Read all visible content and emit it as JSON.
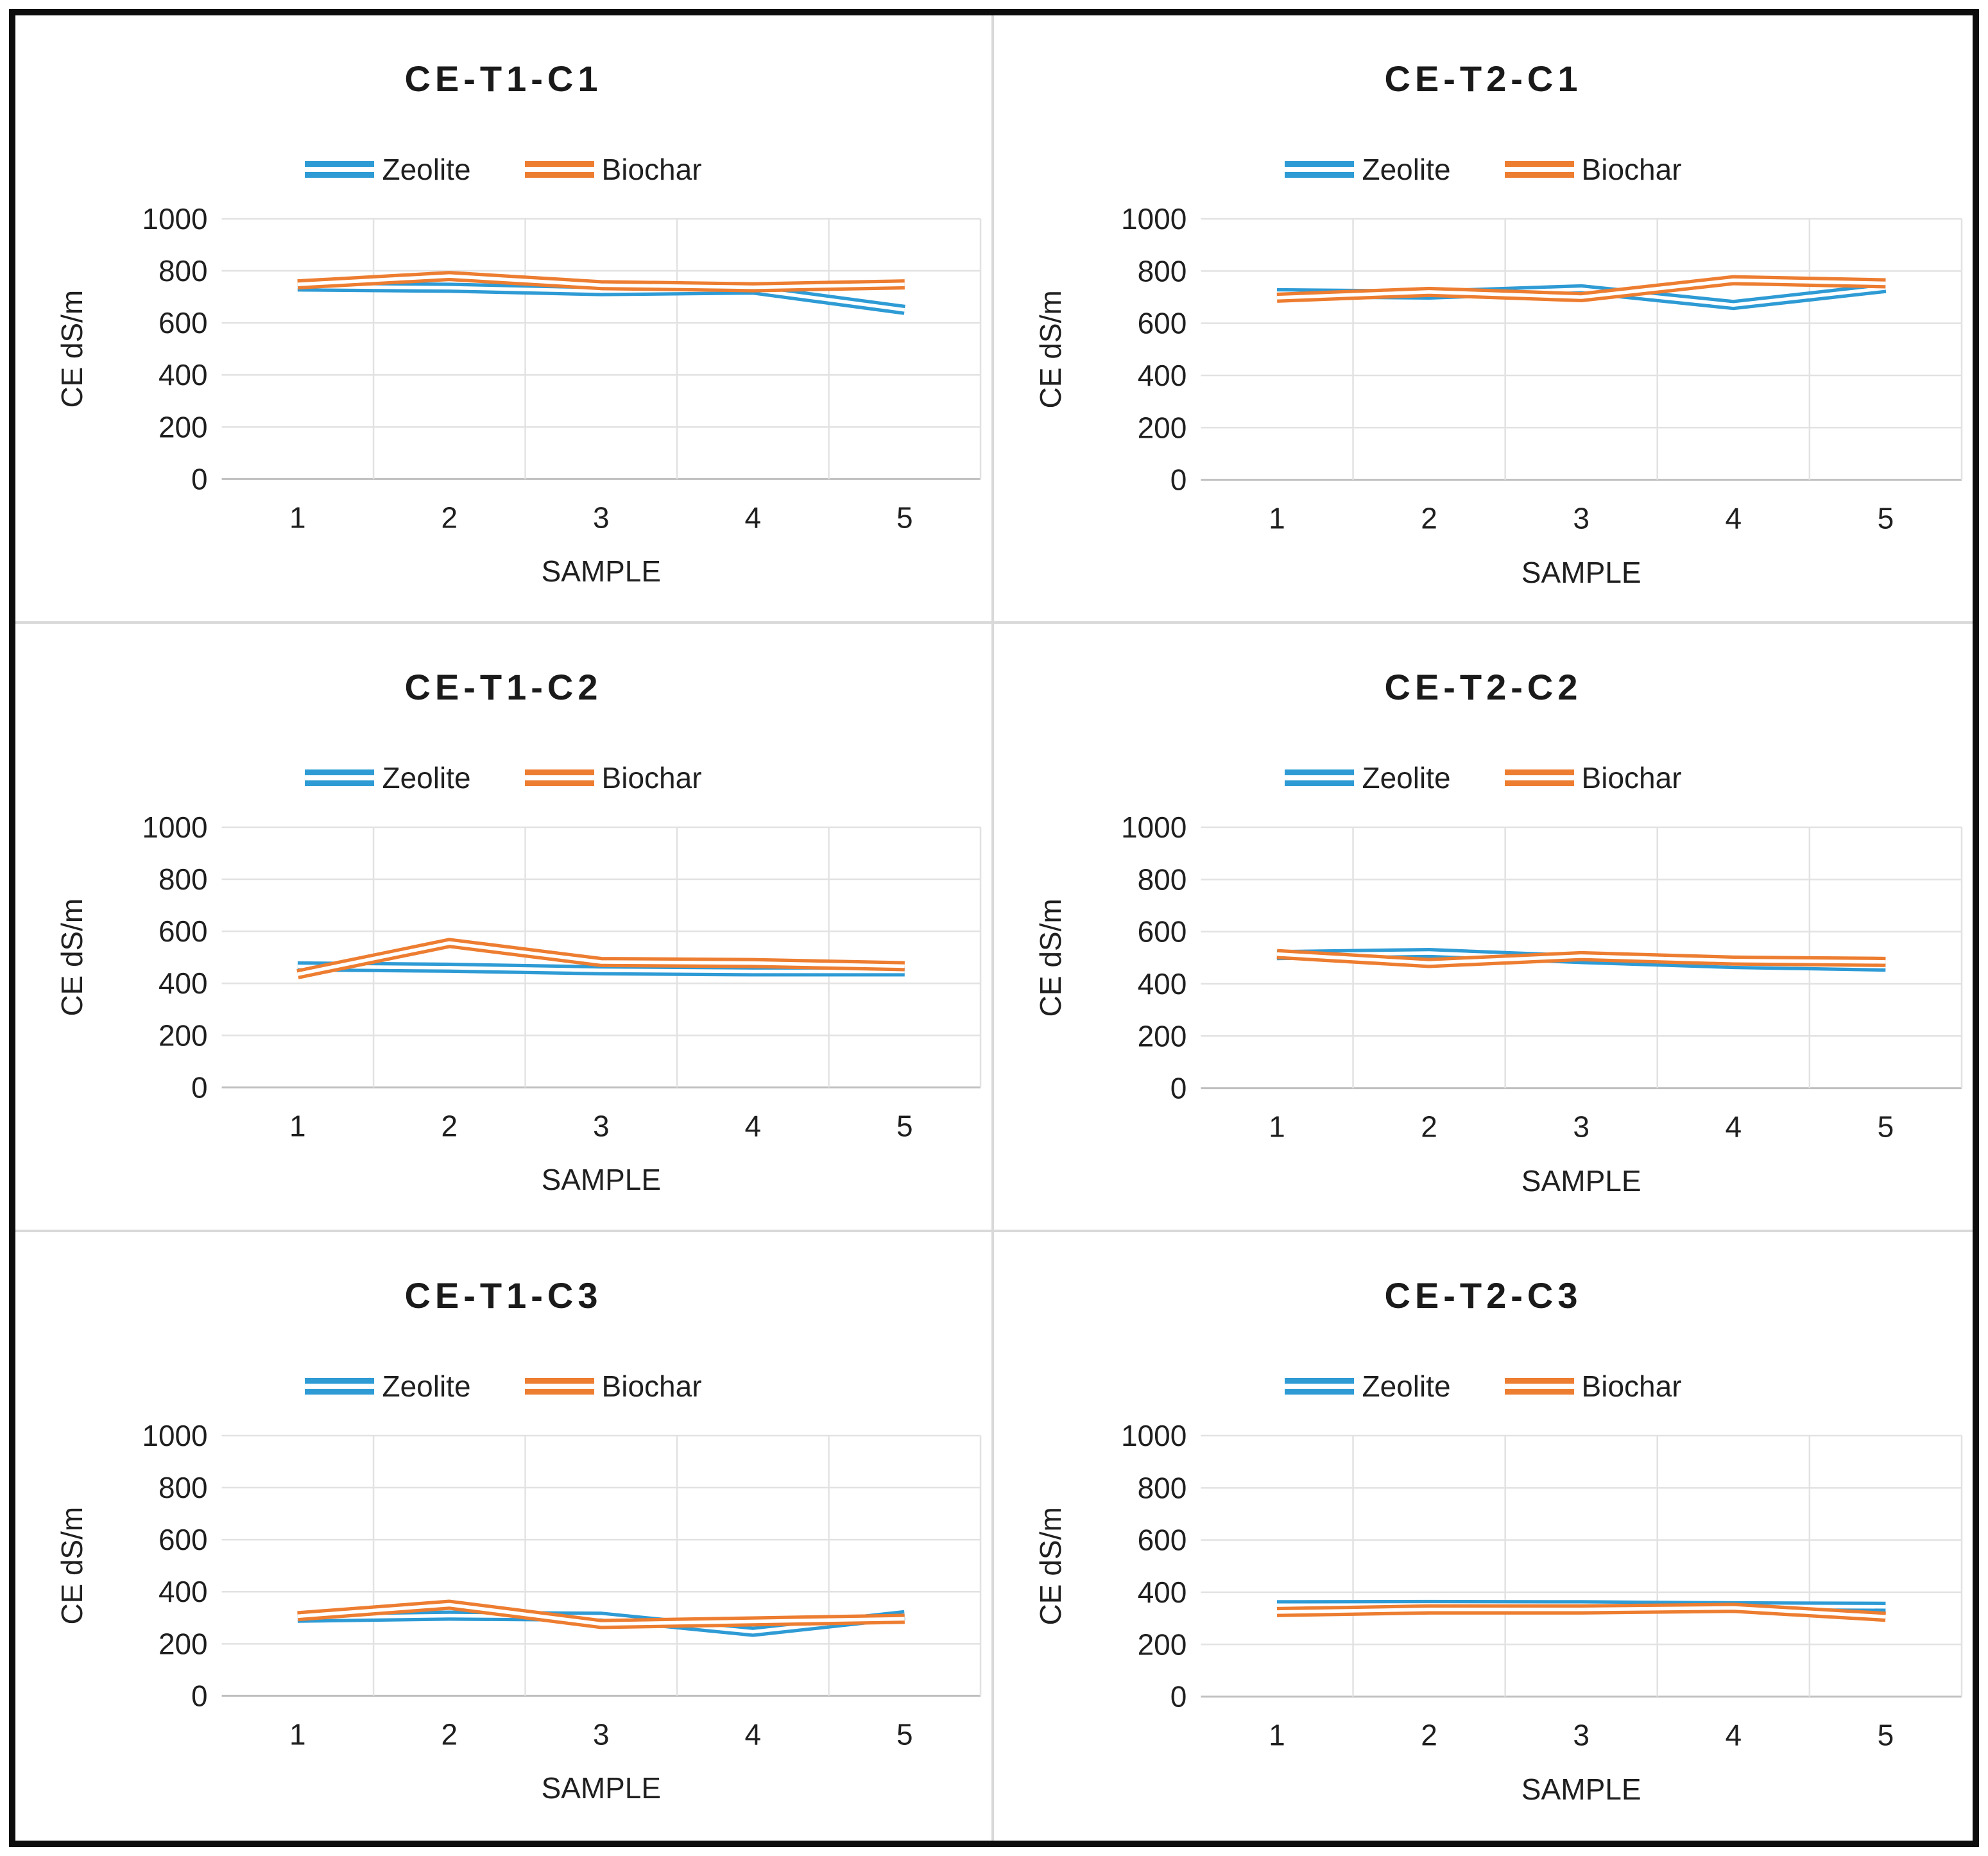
{
  "page": {
    "background": "#ffffff",
    "frame_color": "#0d0d0d",
    "divider_color": "#d9d9d9"
  },
  "colors": {
    "zeolite": "#2e9bd5",
    "biochar": "#ed7d31",
    "grid": "#e2e2e2",
    "axis_line": "#bfbfbf",
    "text": "#1f1f1f"
  },
  "legend": {
    "items": [
      {
        "label": "Zeolite",
        "color_key": "zeolite"
      },
      {
        "label": "Biochar",
        "color_key": "biochar"
      }
    ]
  },
  "axes": {
    "y_label": "CE dS/m",
    "x_label": "SAMPLE",
    "y_ticks": [
      0,
      200,
      400,
      600,
      800,
      1000
    ],
    "ylim": [
      0,
      1000
    ]
  },
  "chart_data": [
    {
      "type": "line",
      "title": "CE-T1-C1",
      "xlabel": "SAMPLE",
      "ylabel": "CE dS/m",
      "ylim": [
        0,
        1000
      ],
      "grid": true,
      "legend_position": "top",
      "categories": [
        1,
        2,
        3,
        4,
        5
      ],
      "series": [
        {
          "name": "Zeolite",
          "color_key": "zeolite",
          "values": [
            740,
            735,
            722,
            728,
            650
          ]
        },
        {
          "name": "Biochar",
          "color_key": "biochar",
          "values": [
            748,
            780,
            745,
            737,
            748
          ]
        }
      ]
    },
    {
      "type": "line",
      "title": "CE-T2-C1",
      "xlabel": "SAMPLE",
      "ylabel": "CE dS/m",
      "ylim": [
        0,
        1000
      ],
      "grid": true,
      "legend_position": "top",
      "categories": [
        1,
        2,
        3,
        4,
        5
      ],
      "series": [
        {
          "name": "Zeolite",
          "color_key": "zeolite",
          "values": [
            715,
            710,
            730,
            670,
            735
          ]
        },
        {
          "name": "Biochar",
          "color_key": "biochar",
          "values": [
            698,
            720,
            700,
            765,
            753
          ]
        }
      ]
    },
    {
      "type": "line",
      "title": "CE-T1-C2",
      "xlabel": "SAMPLE",
      "ylabel": "CE dS/m",
      "ylim": [
        0,
        1000
      ],
      "grid": true,
      "legend_position": "top",
      "categories": [
        1,
        2,
        3,
        4,
        5
      ],
      "series": [
        {
          "name": "Zeolite",
          "color_key": "zeolite",
          "values": [
            465,
            460,
            450,
            446,
            446
          ]
        },
        {
          "name": "Biochar",
          "color_key": "biochar",
          "values": [
            435,
            555,
            482,
            478,
            466
          ]
        }
      ]
    },
    {
      "type": "line",
      "title": "CE-T2-C2",
      "xlabel": "SAMPLE",
      "ylabel": "CE dS/m",
      "ylim": [
        0,
        1000
      ],
      "grid": true,
      "legend_position": "top",
      "categories": [
        1,
        2,
        3,
        4,
        5
      ],
      "series": [
        {
          "name": "Zeolite",
          "color_key": "zeolite",
          "values": [
            510,
            518,
            495,
            476,
            466
          ]
        },
        {
          "name": "Biochar",
          "color_key": "biochar",
          "values": [
            514,
            480,
            506,
            489,
            484
          ]
        }
      ]
    },
    {
      "type": "line",
      "title": "CE-T1-C3",
      "xlabel": "SAMPLE",
      "ylabel": "CE dS/m",
      "ylim": [
        0,
        1000
      ],
      "grid": true,
      "legend_position": "top",
      "categories": [
        1,
        2,
        3,
        4,
        5
      ],
      "series": [
        {
          "name": "Zeolite",
          "color_key": "zeolite",
          "values": [
            300,
            308,
            304,
            246,
            310
          ]
        },
        {
          "name": "Biochar",
          "color_key": "biochar",
          "values": [
            306,
            350,
            276,
            286,
            296
          ]
        }
      ]
    },
    {
      "type": "line",
      "title": "CE-T2-C3",
      "xlabel": "SAMPLE",
      "ylabel": "CE dS/m",
      "ylim": [
        0,
        1000
      ],
      "grid": true,
      "legend_position": "top",
      "categories": [
        1,
        2,
        3,
        4,
        5
      ],
      "series": [
        {
          "name": "Zeolite",
          "color_key": "zeolite",
          "values": [
            350,
            351,
            350,
            346,
            344
          ]
        },
        {
          "name": "Biochar",
          "color_key": "biochar",
          "values": [
            324,
            334,
            334,
            340,
            306
          ]
        }
      ]
    }
  ]
}
